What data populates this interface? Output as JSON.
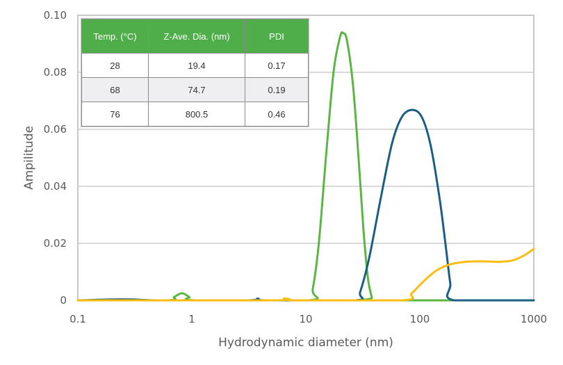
{
  "chart_data": {
    "type": "line",
    "title": "",
    "xlabel": "Hydrodynamic diameter (nm)",
    "ylabel": "Ampilitude",
    "xscale": "log",
    "xlim": [
      0.1,
      1000
    ],
    "ylim": [
      0,
      0.1
    ],
    "x_ticks": [
      "0.1",
      "1",
      "10",
      "100",
      "1000"
    ],
    "y_ticks": [
      "0",
      "0.02",
      "0.04",
      "0.06",
      "0.08",
      "0.10"
    ],
    "grid": "horizontal",
    "legend": "none (series identified via inset table)",
    "series": [
      {
        "name": "28 °C",
        "color": "#5ab543",
        "points": [
          [
            0.1,
            0
          ],
          [
            0.6,
            0
          ],
          [
            0.7,
            0.0012
          ],
          [
            0.82,
            0.0025
          ],
          [
            0.95,
            0.0012
          ],
          [
            1.08,
            0
          ],
          [
            10.5,
            0
          ],
          [
            11.5,
            0.004
          ],
          [
            13,
            0.02
          ],
          [
            15,
            0.05
          ],
          [
            17.5,
            0.08
          ],
          [
            20,
            0.0925
          ],
          [
            21.3,
            0.0937
          ],
          [
            23,
            0.091
          ],
          [
            26,
            0.075
          ],
          [
            29,
            0.05
          ],
          [
            32,
            0.025
          ],
          [
            35,
            0.008
          ],
          [
            38,
            0.001
          ],
          [
            40,
            0
          ],
          [
            1000,
            0
          ]
        ]
      },
      {
        "name": "68 °C",
        "color": "#1a5e84",
        "points": [
          [
            0.1,
            0
          ],
          [
            0.2,
            0.0003
          ],
          [
            0.3,
            0.0003
          ],
          [
            0.5,
            0
          ],
          [
            3,
            0
          ],
          [
            3.8,
            0.0006
          ],
          [
            4.6,
            0
          ],
          [
            27,
            0
          ],
          [
            30,
            0.003
          ],
          [
            36,
            0.015
          ],
          [
            45,
            0.035
          ],
          [
            57,
            0.055
          ],
          [
            70,
            0.0645
          ],
          [
            87,
            0.0668
          ],
          [
            105,
            0.064
          ],
          [
            125,
            0.054
          ],
          [
            150,
            0.035
          ],
          [
            170,
            0.018
          ],
          [
            185,
            0.006
          ],
          [
            200,
            0
          ],
          [
            1000,
            0
          ]
        ]
      },
      {
        "name": "76 °C",
        "color": "#fbbd12",
        "points": [
          [
            0.1,
            0
          ],
          [
            5,
            0
          ],
          [
            6.5,
            0.0007
          ],
          [
            8,
            0
          ],
          [
            70,
            0
          ],
          [
            85,
            0.0025
          ],
          [
            110,
            0.007
          ],
          [
            140,
            0.0105
          ],
          [
            180,
            0.0125
          ],
          [
            250,
            0.0135
          ],
          [
            350,
            0.0137
          ],
          [
            500,
            0.0135
          ],
          [
            650,
            0.014
          ],
          [
            800,
            0.0155
          ],
          [
            1000,
            0.018
          ]
        ]
      }
    ],
    "table": {
      "headers": [
        "Temp. (°C)",
        "Z-Ave. Dia. (nm)",
        "PDI"
      ],
      "rows": [
        [
          "28",
          "19.4",
          "0.17"
        ],
        [
          "68",
          "74.7",
          "0.19"
        ],
        [
          "76",
          "800.5",
          "0.46"
        ]
      ]
    }
  },
  "style": {
    "grid_color": "#d9d9d9",
    "axis_color": "#c8c8c8",
    "header_green": "#4fae4a"
  }
}
